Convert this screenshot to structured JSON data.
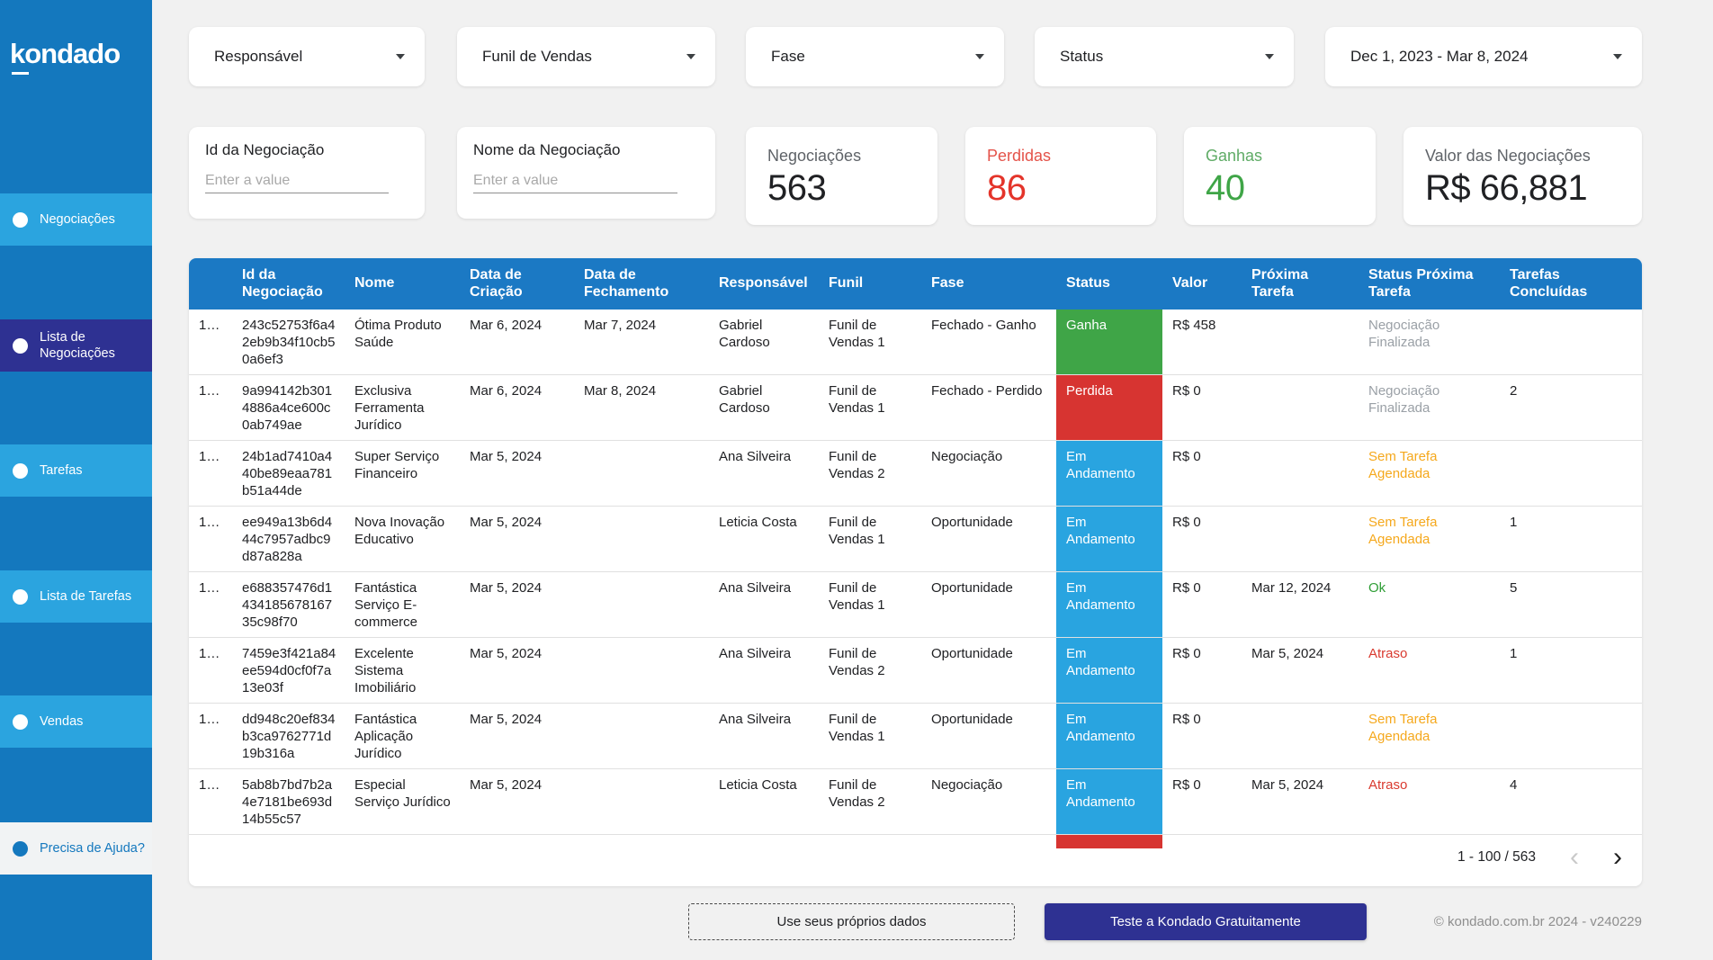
{
  "sidebar": {
    "logo": "kondado",
    "items": [
      {
        "label": "Negociações",
        "state": "normal"
      },
      {
        "label": "Lista de Negociações",
        "state": "selected"
      },
      {
        "label": "Tarefas",
        "state": "normal"
      },
      {
        "label": "Lista de Tarefas",
        "state": "normal"
      },
      {
        "label": "Vendas",
        "state": "normal"
      },
      {
        "label": "Precisa de Ajuda?",
        "state": "help"
      }
    ]
  },
  "filters": [
    {
      "label": "Responsável",
      "has_caret": true
    },
    {
      "label": "Funil de Vendas",
      "has_caret": true
    },
    {
      "label": "Fase",
      "has_caret": true
    },
    {
      "label": "Status",
      "has_caret": true
    },
    {
      "label": "Dec 1, 2023 - Mar 8, 2024",
      "has_caret": true
    }
  ],
  "inputs": [
    {
      "label": "Id da Negociação",
      "placeholder": "Enter a value",
      "value": ""
    },
    {
      "label": "Nome da Negociação",
      "placeholder": "Enter a value",
      "value": ""
    }
  ],
  "kpis": [
    {
      "label": "Negociações",
      "value": "563",
      "label_color": "#5f6368",
      "value_color": "#202124"
    },
    {
      "label": "Perdidas",
      "value": "86",
      "label_color": "#e4534a",
      "value_color": "#e4342a"
    },
    {
      "label": "Ganhas",
      "value": "40",
      "label_color": "#60ac67",
      "value_color": "#3fa547"
    },
    {
      "label": "Valor das Negociações",
      "value": "R$ 66,881",
      "label_color": "#5f6368",
      "value_color": "#202124"
    }
  ],
  "table": {
    "columns": [
      "",
      "Id da Negociação",
      "Nome",
      "Data de Criação",
      "Data de Fechamento",
      "Responsável",
      "Funil",
      "Fase",
      "Status",
      "Valor",
      "Próxima Tarefa",
      "Status Próxima Tarefa",
      "Tarefas Concluídas"
    ],
    "rows": [
      {
        "idx": "1…",
        "id": "243c52753f6a42eb9b34f10cb50a6ef3",
        "nome": "Ótima Produto Saúde",
        "criacao": "Mar 6, 2024",
        "fechamento": "Mar 7, 2024",
        "responsavel": "Gabriel Cardoso",
        "funil": "Funil de Vendas 1",
        "fase": "Fechado - Ganho",
        "status": "Ganha",
        "status_type": "ganha",
        "valor": "R$ 458",
        "proxima": "",
        "status_proxima": "Negociação Finalizada",
        "status_proxima_type": "gray",
        "tarefas": ""
      },
      {
        "idx": "1…",
        "id": "9a994142b3014886a4ce600c0ab749ae",
        "nome": "Exclusiva Ferramenta Jurídico",
        "criacao": "Mar 6, 2024",
        "fechamento": "Mar 8, 2024",
        "responsavel": "Gabriel Cardoso",
        "funil": "Funil de Vendas 1",
        "fase": "Fechado - Perdido",
        "status": "Perdida",
        "status_type": "perdida",
        "valor": "R$ 0",
        "proxima": "",
        "status_proxima": "Negociação Finalizada",
        "status_proxima_type": "gray",
        "tarefas": "2"
      },
      {
        "idx": "1…",
        "id": "24b1ad7410a440be89eaa781b51a44de",
        "nome": "Super Serviço Financeiro",
        "criacao": "Mar 5, 2024",
        "fechamento": "",
        "responsavel": "Ana Silveira",
        "funil": "Funil de Vendas 2",
        "fase": "Negociação",
        "status": "Em Andamento",
        "status_type": "andamento",
        "valor": "R$ 0",
        "proxima": "",
        "status_proxima": "Sem Tarefa Agendada",
        "status_proxima_type": "orange",
        "tarefas": ""
      },
      {
        "idx": "1…",
        "id": "ee949a13b6d444c7957adbc9d87a828a",
        "nome": "Nova Inovação Educativo",
        "criacao": "Mar 5, 2024",
        "fechamento": "",
        "responsavel": "Leticia Costa",
        "funil": "Funil de Vendas 1",
        "fase": "Oportunidade",
        "status": "Em Andamento",
        "status_type": "andamento",
        "valor": "R$ 0",
        "proxima": "",
        "status_proxima": "Sem Tarefa Agendada",
        "status_proxima_type": "orange",
        "tarefas": "1"
      },
      {
        "idx": "1…",
        "id": "e688357476d143418567816735c98f70",
        "nome": "Fantástica Serviço E-commerce",
        "criacao": "Mar 5, 2024",
        "fechamento": "",
        "responsavel": "Ana Silveira",
        "funil": "Funil de Vendas 1",
        "fase": "Oportunidade",
        "status": "Em Andamento",
        "status_type": "andamento",
        "valor": "R$ 0",
        "proxima": "Mar 12, 2024",
        "status_proxima": "Ok",
        "status_proxima_type": "green",
        "tarefas": "5"
      },
      {
        "idx": "1…",
        "id": "7459e3f421a84ee594d0cf0f7a13e03f",
        "nome": "Excelente Sistema Imobiliário",
        "criacao": "Mar 5, 2024",
        "fechamento": "",
        "responsavel": "Ana Silveira",
        "funil": "Funil de Vendas 2",
        "fase": "Oportunidade",
        "status": "Em Andamento",
        "status_type": "andamento",
        "valor": "R$ 0",
        "proxima": "Mar 5, 2024",
        "status_proxima": "Atraso",
        "status_proxima_type": "red",
        "tarefas": "1"
      },
      {
        "idx": "1…",
        "id": "dd948c20ef834b3ca9762771d19b316a",
        "nome": "Fantástica Aplicação Jurídico",
        "criacao": "Mar 5, 2024",
        "fechamento": "",
        "responsavel": "Ana Silveira",
        "funil": "Funil de Vendas 1",
        "fase": "Oportunidade",
        "status": "Em Andamento",
        "status_type": "andamento",
        "valor": "R$ 0",
        "proxima": "",
        "status_proxima": "Sem Tarefa Agendada",
        "status_proxima_type": "orange",
        "tarefas": ""
      },
      {
        "idx": "1…",
        "id": "5ab8b7bd7b2a4e7181be693d14b55c57",
        "nome": "Especial Serviço Jurídico",
        "criacao": "Mar 5, 2024",
        "fechamento": "",
        "responsavel": "Leticia Costa",
        "funil": "Funil de Vendas 2",
        "fase": "Negociação",
        "status": "Em Andamento",
        "status_type": "andamento",
        "valor": "R$ 0",
        "proxima": "Mar 5, 2024",
        "status_proxima": "Atraso",
        "status_proxima_type": "red",
        "tarefas": "4"
      }
    ],
    "partial_row_status_type": "perdida"
  },
  "pagination": {
    "range": "1 - 100 / 563",
    "prev": "‹",
    "next": "›"
  },
  "footer": {
    "secondary_button": "Use seus próprios dados",
    "primary_button": "Teste a Kondado Gratuitamente",
    "copyright": "© kondado.com.br 2024 - v240229"
  },
  "colors": {
    "sidebar_bg": "#1478be",
    "sidebar_item": "#2ba4df",
    "sidebar_selected": "#2e3192",
    "table_header": "#1b79c4",
    "status_ganha": "#3fa547",
    "status_perdida": "#d73431",
    "status_andamento": "#29a4e0",
    "text_orange": "#f5a81c",
    "text_green": "#2f9e36",
    "text_red": "#d93a2f",
    "kpi_red": "#e4342a",
    "kpi_green": "#3fa547",
    "cta_navy": "#2e3192"
  }
}
